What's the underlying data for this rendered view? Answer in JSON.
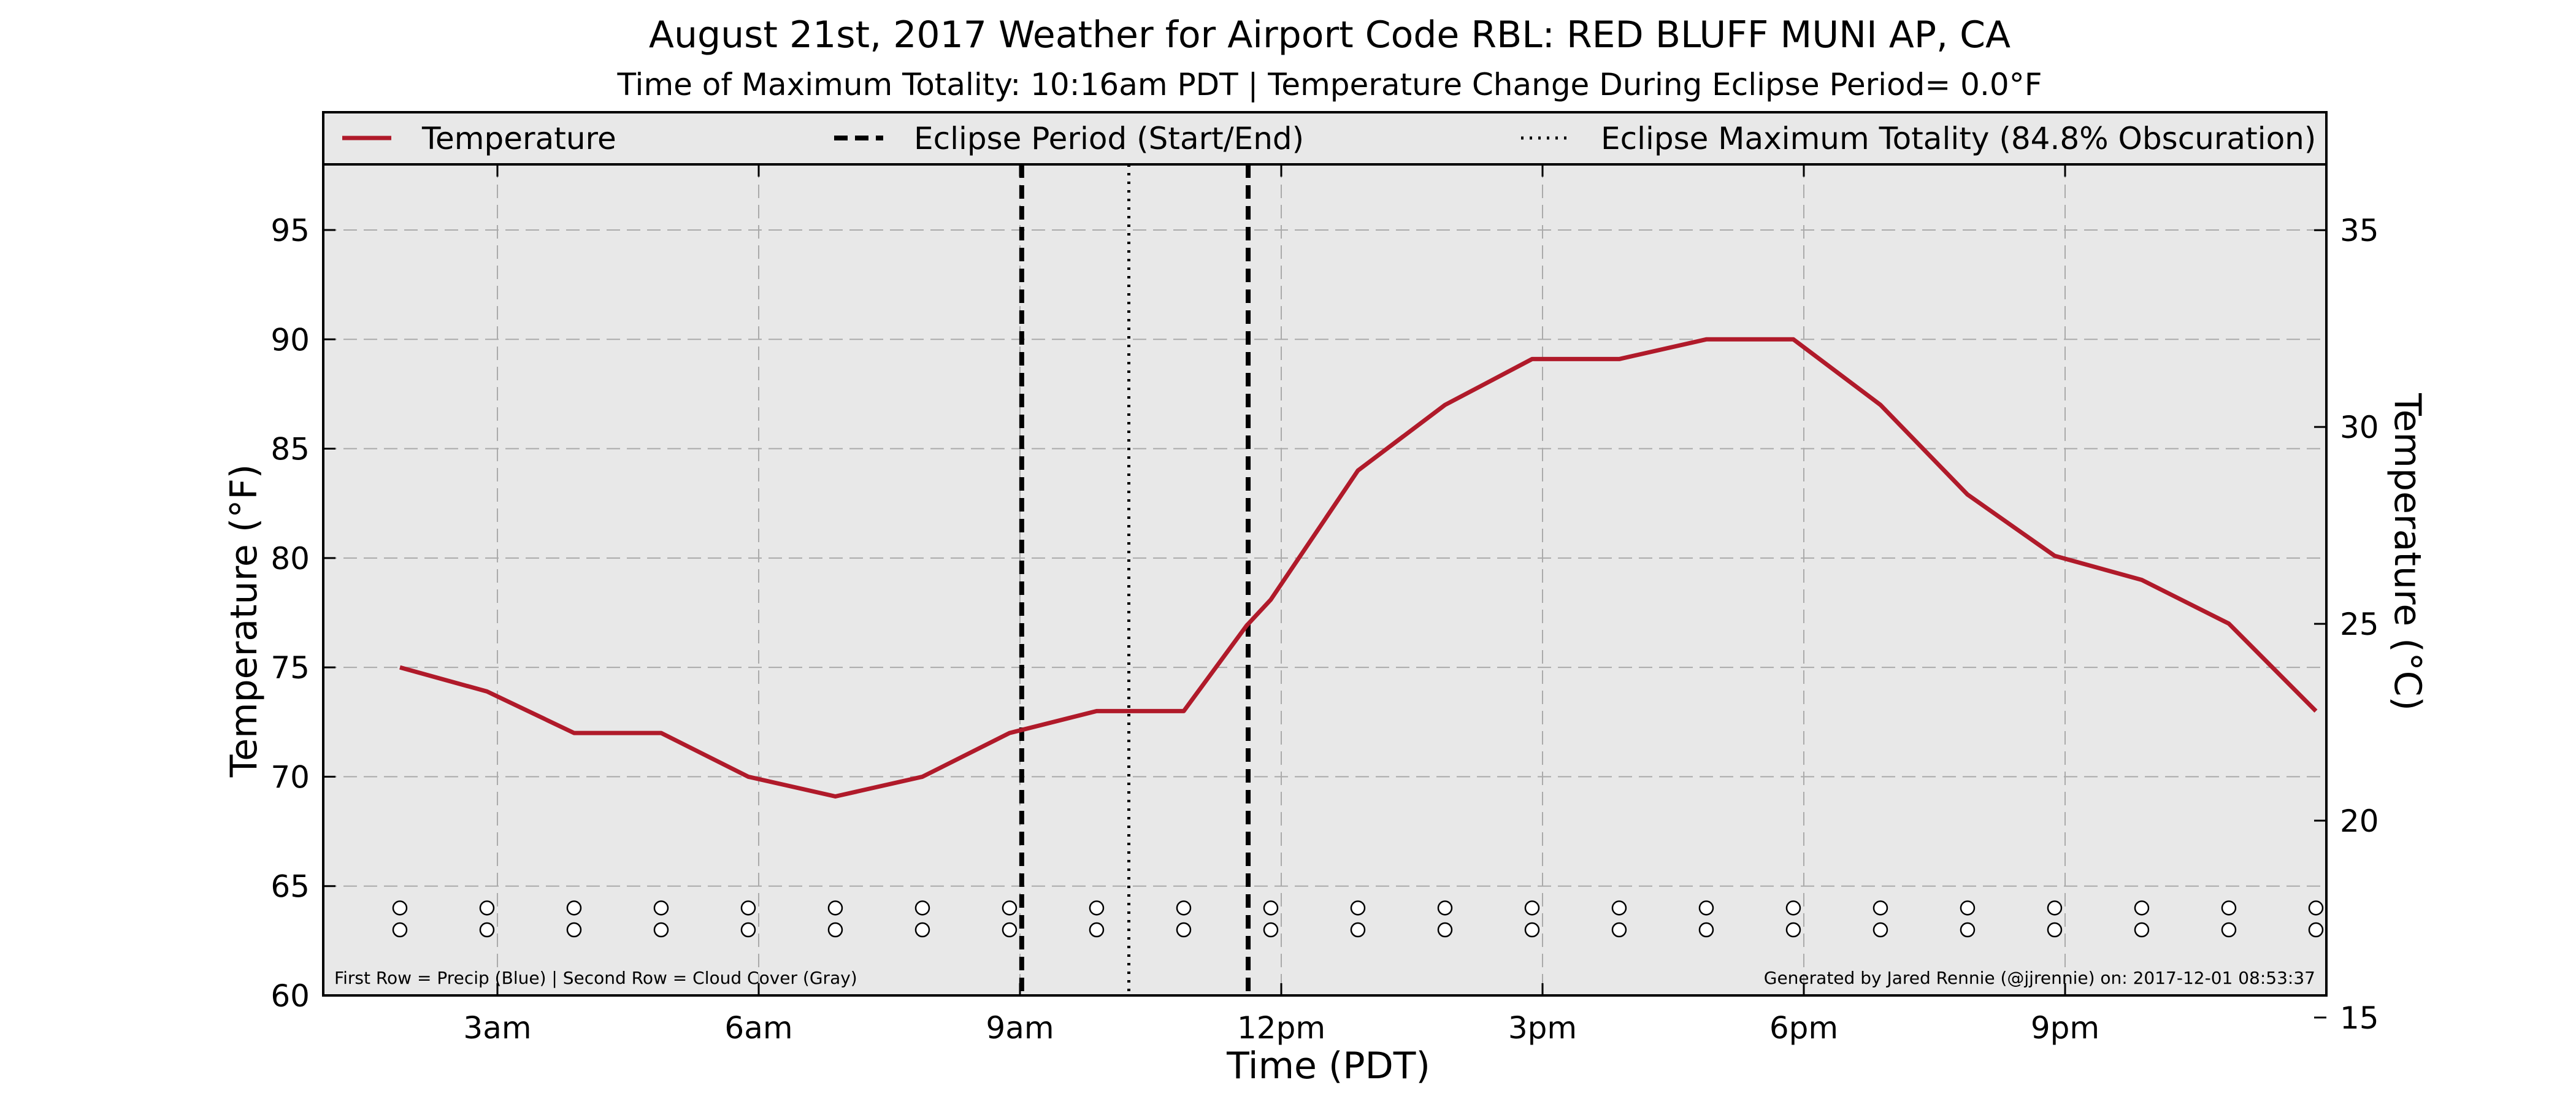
{
  "chart_data": {
    "type": "line",
    "title": "August 21st, 2017 Weather for Airport Code RBL: RED BLUFF MUNI AP, CA",
    "subtitle": "Time of Maximum Totality: 10:16am PDT | Temperature Change During Eclipse Period= 0.0°F",
    "xlabel": "Time (PDT)",
    "ylabel": "Temperature (°F)",
    "ylabel_right": "Temperature (°C)",
    "x_range_hours": [
      1.0,
      24.0
    ],
    "ylim": [
      60,
      98
    ],
    "ylim_right": [
      15.56,
      36.67
    ],
    "x_ticks": [
      {
        "hour": 3,
        "label": "3am"
      },
      {
        "hour": 6,
        "label": "6am"
      },
      {
        "hour": 9,
        "label": "9am"
      },
      {
        "hour": 12,
        "label": "12pm"
      },
      {
        "hour": 15,
        "label": "3pm"
      },
      {
        "hour": 18,
        "label": "6pm"
      },
      {
        "hour": 21,
        "label": "9pm"
      }
    ],
    "y_ticks": [
      {
        "value": 60,
        "label": "60"
      },
      {
        "value": 65,
        "label": "65"
      },
      {
        "value": 70,
        "label": "70"
      },
      {
        "value": 75,
        "label": "75"
      },
      {
        "value": 80,
        "label": "80"
      },
      {
        "value": 85,
        "label": "85"
      },
      {
        "value": 90,
        "label": "90"
      },
      {
        "value": 95,
        "label": "95"
      }
    ],
    "y_ticks_right": [
      {
        "value": 15,
        "label": "15"
      },
      {
        "value": 20,
        "label": "20"
      },
      {
        "value": 25,
        "label": "25"
      },
      {
        "value": 30,
        "label": "30"
      },
      {
        "value": 35,
        "label": "35"
      }
    ],
    "grid": true,
    "legend_position": "top",
    "legend": [
      {
        "label": "Temperature",
        "style": "solid",
        "color": "#b01a2a"
      },
      {
        "label": "Eclipse Period (Start/End)",
        "style": "dashed",
        "color": "#000000"
      },
      {
        "label": "Eclipse Maximum Totality (84.8% Obscuration)",
        "style": "dotted",
        "color": "#000000"
      }
    ],
    "series": [
      {
        "name": "Temperature",
        "color": "#b01a2a",
        "x": [
          1.88,
          2.88,
          3.88,
          4.88,
          5.88,
          6.88,
          7.88,
          8.88,
          9.88,
          10.88,
          11.6,
          11.88,
          12.88,
          13.88,
          14.88,
          15.88,
          16.88,
          17.88,
          18.88,
          19.88,
          20.88,
          21.88,
          22.88,
          23.88
        ],
        "y": [
          75,
          73.9,
          72,
          72,
          70,
          69.1,
          70,
          72,
          73,
          73,
          76.9,
          78.1,
          84,
          87,
          89.1,
          89.1,
          90,
          90,
          87,
          82.9,
          80.1,
          79,
          77,
          73
        ]
      }
    ],
    "eclipse_start_hour": 9.02,
    "eclipse_end_hour": 11.62,
    "eclipse_max_hour": 10.25,
    "marker_hours": [
      1.88,
      2.88,
      3.88,
      4.88,
      5.88,
      6.88,
      7.88,
      8.88,
      9.88,
      10.88,
      11.88,
      12.88,
      13.88,
      14.88,
      15.88,
      16.88,
      17.88,
      18.88,
      19.88,
      20.88,
      21.88,
      22.88,
      23.88
    ],
    "marker_rows": [
      64,
      63
    ],
    "footnote_left": "First Row = Precip (Blue) | Second Row = Cloud Cover (Gray)",
    "footnote_right": "Generated by Jared Rennie (@jjrennie) on: 2017-12-01 08:53:37"
  },
  "colors": {
    "plot_background": "#e8e8e8",
    "grid": "#aaaaaa",
    "temperature_line": "#b01a2a"
  }
}
